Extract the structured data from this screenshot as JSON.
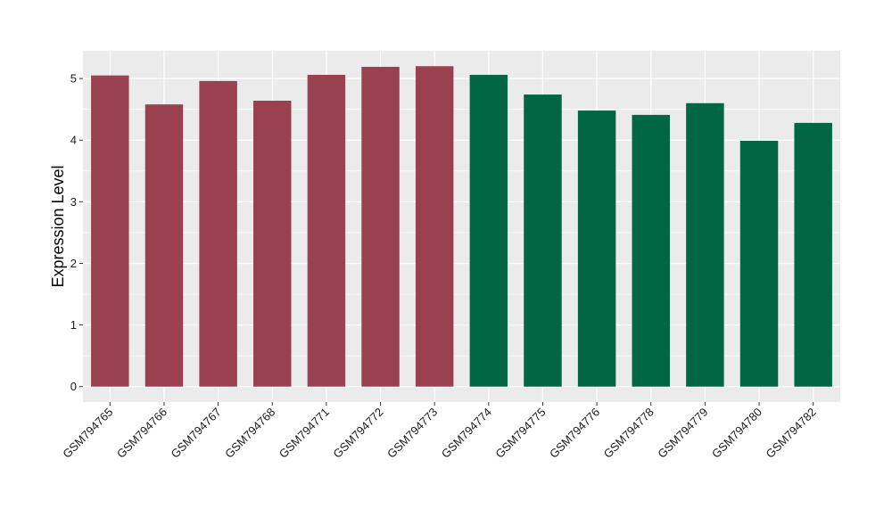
{
  "chart_data": {
    "type": "bar",
    "categories": [
      "GSM794765",
      "GSM794766",
      "GSM794767",
      "GSM794768",
      "GSM794771",
      "GSM794772",
      "GSM794773",
      "GSM794774",
      "GSM794775",
      "GSM794776",
      "GSM794778",
      "GSM794779",
      "GSM794780",
      "GSM794782"
    ],
    "values": [
      5.05,
      4.58,
      4.96,
      4.64,
      5.06,
      5.19,
      5.2,
      5.06,
      4.74,
      4.48,
      4.41,
      4.6,
      3.99,
      4.28
    ],
    "bar_colors": [
      "#99414f",
      "#99414f",
      "#99414f",
      "#99414f",
      "#99414f",
      "#99414f",
      "#99414f",
      "#006644",
      "#006644",
      "#006644",
      "#006644",
      "#006644",
      "#006644",
      "#006644"
    ],
    "title": "",
    "xlabel": "",
    "ylabel": "Expression Level",
    "ylim": [
      -0.25,
      5.45
    ],
    "yticks": [
      0,
      1,
      2,
      3,
      4,
      5
    ],
    "grid": true,
    "panel_background": "#ebebeb",
    "gridline_color": "#ffffff"
  }
}
